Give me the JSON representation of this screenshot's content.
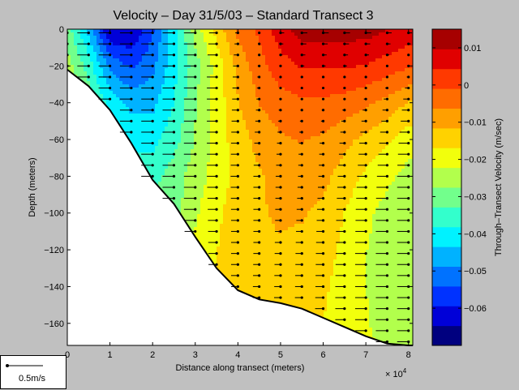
{
  "chart_data": {
    "type": "heatmap",
    "title": "Velocity – Day 31/5/03 – Standard Transect 3",
    "xlabel": "Distance along transect (meters)",
    "x_multiplier_label": "× 10",
    "x_multiplier_exp": "4",
    "ylabel": "Depth (meters)",
    "colorbar_label": "Through–Transect Velocity (m/sec)",
    "xlim": [
      0,
      8.1
    ],
    "ylim": [
      -172,
      0
    ],
    "x_ticks": [
      0,
      1,
      2,
      3,
      4,
      5,
      6,
      7,
      8
    ],
    "y_ticks": [
      0,
      -20,
      -40,
      -60,
      -80,
      -100,
      -120,
      -140,
      -160
    ],
    "y_tick_labels": [
      "0",
      "−20",
      "−40",
      "−60",
      "−80",
      "−100",
      "−120",
      "−140",
      "−160"
    ],
    "colorbar_range": [
      -0.07,
      0.015
    ],
    "colorbar_ticks": [
      0.01,
      0,
      -0.01,
      -0.02,
      -0.03,
      -0.04,
      -0.05,
      -0.06
    ],
    "colorbar_tick_labels": [
      "0.01",
      "0",
      "−0.01",
      "−0.02",
      "−0.03",
      "−0.04",
      "−0.05",
      "−0.06"
    ],
    "colormap": [
      "#00007f",
      "#0000d8",
      "#0032ff",
      "#0072ff",
      "#00b2ff",
      "#00f2ff",
      "#33ffcc",
      "#72ff8c",
      "#b2ff4c",
      "#f2ff0c",
      "#ffd200",
      "#ff9f00",
      "#ff6c00",
      "#ff3900",
      "#e00000",
      "#a60000"
    ],
    "bottom_profile": [
      [
        0,
        -22
      ],
      [
        0.5,
        -31
      ],
      [
        1,
        -44
      ],
      [
        1.5,
        -62
      ],
      [
        2,
        -82
      ],
      [
        2.5,
        -95
      ],
      [
        3,
        -113
      ],
      [
        3.5,
        -130
      ],
      [
        4,
        -142
      ],
      [
        4.5,
        -147
      ],
      [
        5,
        -149
      ],
      [
        5.5,
        -152
      ],
      [
        6,
        -157
      ],
      [
        6.5,
        -162
      ],
      [
        7,
        -167
      ],
      [
        7.5,
        -171
      ],
      [
        8,
        -172
      ]
    ],
    "profile_x": [
      0,
      0.5,
      1,
      1.5,
      2,
      2.5,
      3,
      3.5,
      4,
      4.5,
      5,
      5.5,
      6,
      6.5,
      7,
      7.5,
      8
    ],
    "velocity_rows_depth": [
      0,
      -20,
      -40,
      -60,
      -80,
      -100,
      -120,
      -140,
      -160,
      -172
    ],
    "velocity": [
      [
        -0.03,
        -0.045,
        -0.065,
        -0.065,
        -0.055,
        -0.04,
        -0.025,
        -0.015,
        -0.005,
        0.0,
        0.008,
        0.012,
        0.012,
        0.012,
        0.012,
        0.01,
        0.008
      ],
      [
        -0.025,
        -0.035,
        -0.05,
        -0.055,
        -0.05,
        -0.04,
        -0.03,
        -0.02,
        -0.01,
        -0.003,
        0.002,
        0.005,
        0.005,
        0.005,
        0.004,
        0.002,
        0.0
      ],
      [
        -0.02,
        -0.03,
        -0.04,
        -0.045,
        -0.045,
        -0.038,
        -0.028,
        -0.02,
        -0.012,
        -0.006,
        -0.003,
        -0.002,
        -0.002,
        -0.003,
        -0.005,
        -0.008,
        -0.012
      ],
      [
        -0.02,
        -0.025,
        -0.033,
        -0.04,
        -0.04,
        -0.035,
        -0.027,
        -0.02,
        -0.014,
        -0.01,
        -0.007,
        -0.006,
        -0.007,
        -0.01,
        -0.013,
        -0.016,
        -0.02
      ],
      [
        -0.02,
        -0.025,
        -0.03,
        -0.035,
        -0.035,
        -0.03,
        -0.025,
        -0.02,
        -0.015,
        -0.012,
        -0.01,
        -0.008,
        -0.01,
        -0.014,
        -0.018,
        -0.021,
        -0.024
      ],
      [
        -0.02,
        -0.025,
        -0.03,
        -0.03,
        -0.03,
        -0.03,
        -0.023,
        -0.018,
        -0.014,
        -0.012,
        -0.011,
        -0.011,
        -0.013,
        -0.017,
        -0.021,
        -0.024,
        -0.026
      ],
      [
        -0.02,
        -0.02,
        -0.025,
        -0.028,
        -0.028,
        -0.025,
        -0.021,
        -0.017,
        -0.014,
        -0.012,
        -0.012,
        -0.013,
        -0.015,
        -0.018,
        -0.022,
        -0.025,
        -0.027
      ],
      [
        -0.02,
        -0.02,
        -0.022,
        -0.025,
        -0.025,
        -0.022,
        -0.019,
        -0.016,
        -0.014,
        -0.013,
        -0.013,
        -0.014,
        -0.016,
        -0.019,
        -0.022,
        -0.025,
        -0.027
      ],
      [
        -0.02,
        -0.02,
        -0.02,
        -0.022,
        -0.022,
        -0.02,
        -0.018,
        -0.016,
        -0.015,
        -0.014,
        -0.014,
        -0.015,
        -0.017,
        -0.019,
        -0.022,
        -0.024,
        -0.026
      ],
      [
        -0.02,
        -0.02,
        -0.02,
        -0.02,
        -0.02,
        -0.02,
        -0.018,
        -0.016,
        -0.015,
        -0.015,
        -0.015,
        -0.016,
        -0.017,
        -0.019,
        -0.021,
        -0.023,
        -0.025
      ]
    ],
    "vector_scale_label": "0.5m/s",
    "vector_scale_value": 0.5
  }
}
